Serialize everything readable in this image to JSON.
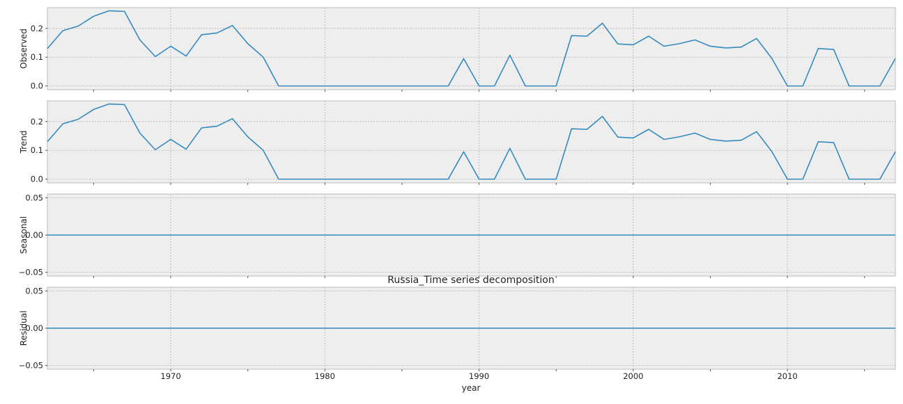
{
  "chart_data": {
    "type": "line",
    "title": "Russia_Time series decomposition",
    "xlabel": "year",
    "x": [
      1962,
      1963,
      1964,
      1965,
      1966,
      1967,
      1968,
      1969,
      1970,
      1971,
      1972,
      1973,
      1974,
      1975,
      1976,
      1977,
      1978,
      1979,
      1980,
      1981,
      1982,
      1983,
      1984,
      1985,
      1986,
      1987,
      1988,
      1989,
      1990,
      1991,
      1992,
      1993,
      1994,
      1995,
      1996,
      1997,
      1998,
      1999,
      2000,
      2001,
      2002,
      2003,
      2004,
      2005,
      2006,
      2007,
      2008,
      2009,
      2010,
      2011,
      2012,
      2013,
      2014,
      2015,
      2016,
      2017
    ],
    "xlim": [
      1962,
      2017
    ],
    "x_ticks": [
      1970,
      1980,
      1990,
      2000,
      2010
    ],
    "x_tick_labels": [
      "1970",
      "1980",
      "1990",
      "2000",
      "2010"
    ],
    "line_color": "#348abd",
    "grid": true,
    "panels": [
      {
        "ylabel": "Observed",
        "ylim": [
          -0.013,
          0.272
        ],
        "y_ticks": [
          0.0,
          0.1,
          0.2
        ],
        "y_tick_labels": [
          "0.0",
          "0.1",
          "0.2"
        ],
        "values": [
          0.13,
          0.192,
          0.208,
          0.242,
          0.261,
          0.259,
          0.16,
          0.102,
          0.138,
          0.104,
          0.178,
          0.184,
          0.21,
          0.147,
          0.1,
          0,
          0,
          0,
          0,
          0,
          0,
          0,
          0,
          0,
          0,
          0,
          0,
          0.095,
          0,
          0,
          0.107,
          0,
          0,
          0,
          0.175,
          0.173,
          0.218,
          0.146,
          0.143,
          0.173,
          0.138,
          0.147,
          0.16,
          0.138,
          0.132,
          0.135,
          0.165,
          0.095,
          0,
          0,
          0.13,
          0.127,
          0,
          0,
          0,
          0.095
        ]
      },
      {
        "ylabel": "Trend",
        "ylim": [
          -0.013,
          0.272
        ],
        "y_ticks": [
          0.0,
          0.1,
          0.2
        ],
        "y_tick_labels": [
          "0.0",
          "0.1",
          "0.2"
        ],
        "values": [
          0.13,
          0.192,
          0.208,
          0.242,
          0.261,
          0.259,
          0.16,
          0.102,
          0.138,
          0.104,
          0.178,
          0.184,
          0.21,
          0.147,
          0.1,
          0,
          0,
          0,
          0,
          0,
          0,
          0,
          0,
          0,
          0,
          0,
          0,
          0.095,
          0,
          0,
          0.107,
          0,
          0,
          0,
          0.175,
          0.173,
          0.218,
          0.146,
          0.143,
          0.173,
          0.138,
          0.147,
          0.16,
          0.138,
          0.132,
          0.135,
          0.165,
          0.095,
          0,
          0,
          0.13,
          0.127,
          0,
          0,
          0,
          0.095
        ]
      },
      {
        "ylabel": "Seasonal",
        "ylim": [
          -0.055,
          0.055
        ],
        "y_ticks": [
          -0.05,
          0.0,
          0.05
        ],
        "y_tick_labels": [
          "−0.05",
          "0.00",
          "0.05"
        ],
        "values": [
          0,
          0,
          0,
          0,
          0,
          0,
          0,
          0,
          0,
          0,
          0,
          0,
          0,
          0,
          0,
          0,
          0,
          0,
          0,
          0,
          0,
          0,
          0,
          0,
          0,
          0,
          0,
          0,
          0,
          0,
          0,
          0,
          0,
          0,
          0,
          0,
          0,
          0,
          0,
          0,
          0,
          0,
          0,
          0,
          0,
          0,
          0,
          0,
          0,
          0,
          0,
          0,
          0,
          0,
          0,
          0
        ]
      },
      {
        "ylabel": "Residual",
        "ylim": [
          -0.055,
          0.055
        ],
        "y_ticks": [
          -0.05,
          0.0,
          0.05
        ],
        "y_tick_labels": [
          "−0.05",
          "0.00",
          "0.05"
        ],
        "values": [
          0,
          0,
          0,
          0,
          0,
          0,
          0,
          0,
          0,
          0,
          0,
          0,
          0,
          0,
          0,
          0,
          0,
          0,
          0,
          0,
          0,
          0,
          0,
          0,
          0,
          0,
          0,
          0,
          0,
          0,
          0,
          0,
          0,
          0,
          0,
          0,
          0,
          0,
          0,
          0,
          0,
          0,
          0,
          0,
          0,
          0,
          0,
          0,
          0,
          0,
          0,
          0,
          0,
          0,
          0,
          0
        ]
      }
    ]
  }
}
